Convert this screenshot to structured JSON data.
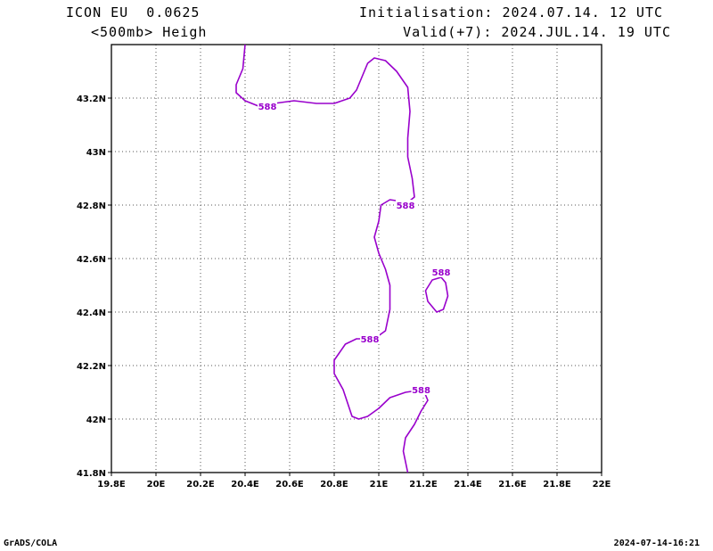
{
  "header": {
    "model": "ICON EU  0.0625",
    "field": "<500mb> Heigh",
    "init": "Initialisation: 2024.07.14. 12 UTC",
    "valid": "Valid(+7): 2024.JUL.14. 19 UTC"
  },
  "footer": {
    "software": "GrADS/COLA",
    "timestamp": "2024-07-14-16:21"
  },
  "chart_data": {
    "type": "contour",
    "xlim": [
      19.8,
      22.0
    ],
    "ylim": [
      41.8,
      43.4
    ],
    "x_ticks": [
      19.8,
      20.0,
      20.2,
      20.4,
      20.6,
      20.8,
      21.0,
      21.2,
      21.4,
      21.6,
      21.8,
      22.0
    ],
    "x_tick_labels": [
      "19.8E",
      "20E",
      "20.2E",
      "20.4E",
      "20.6E",
      "20.8E",
      "21E",
      "21.2E",
      "21.4E",
      "21.6E",
      "21.8E",
      "22E"
    ],
    "y_ticks": [
      41.8,
      42.0,
      42.2,
      42.4,
      42.6,
      42.8,
      43.0,
      43.2
    ],
    "y_tick_labels": [
      "41.8N",
      "42N",
      "42.2N",
      "42.4N",
      "42.6N",
      "42.8N",
      "43N",
      "43.2N"
    ],
    "grid": true,
    "contour_color": "#9900cc",
    "contours": [
      {
        "value": "588",
        "points": [
          [
            20.4,
            43.4
          ],
          [
            20.39,
            43.31
          ],
          [
            20.36,
            43.25
          ],
          [
            20.36,
            43.22
          ],
          [
            20.4,
            43.19
          ],
          [
            20.46,
            43.17
          ],
          [
            20.53,
            43.18
          ],
          [
            20.62,
            43.19
          ],
          [
            20.72,
            43.18
          ],
          [
            20.8,
            43.18
          ],
          [
            20.87,
            43.2
          ],
          [
            20.9,
            43.23
          ],
          [
            20.93,
            43.29
          ],
          [
            20.95,
            43.33
          ],
          [
            20.98,
            43.35
          ],
          [
            21.03,
            43.34
          ],
          [
            21.08,
            43.3
          ],
          [
            21.13,
            43.24
          ],
          [
            21.14,
            43.15
          ],
          [
            21.13,
            43.05
          ],
          [
            21.13,
            42.98
          ],
          [
            21.15,
            42.9
          ],
          [
            21.16,
            42.83
          ],
          [
            21.13,
            42.81
          ],
          [
            21.05,
            42.82
          ],
          [
            21.01,
            42.8
          ],
          [
            21.0,
            42.74
          ],
          [
            20.98,
            42.68
          ],
          [
            21.0,
            42.62
          ],
          [
            21.03,
            42.56
          ],
          [
            21.05,
            42.5
          ],
          [
            21.05,
            42.41
          ],
          [
            21.03,
            42.33
          ],
          [
            20.98,
            42.3
          ],
          [
            20.9,
            42.3
          ],
          [
            20.85,
            42.28
          ],
          [
            20.8,
            42.22
          ],
          [
            20.8,
            42.17
          ],
          [
            20.84,
            42.11
          ],
          [
            20.86,
            42.06
          ],
          [
            20.88,
            42.01
          ],
          [
            20.91,
            42.0
          ],
          [
            20.95,
            42.01
          ],
          [
            21.0,
            42.04
          ],
          [
            21.05,
            42.08
          ],
          [
            21.12,
            42.1
          ],
          [
            21.2,
            42.11
          ],
          [
            21.22,
            42.07
          ],
          [
            21.19,
            42.03
          ],
          [
            21.16,
            41.98
          ],
          [
            21.12,
            41.93
          ],
          [
            21.11,
            41.88
          ],
          [
            21.13,
            41.8
          ]
        ],
        "labels": [
          [
            20.5,
            43.17
          ],
          [
            21.12,
            42.8
          ],
          [
            20.96,
            42.3
          ],
          [
            21.19,
            42.11
          ]
        ]
      },
      {
        "value": "588",
        "closed": true,
        "points": [
          [
            21.28,
            42.53
          ],
          [
            21.3,
            42.51
          ],
          [
            21.31,
            42.46
          ],
          [
            21.29,
            42.41
          ],
          [
            21.26,
            42.4
          ],
          [
            21.22,
            42.44
          ],
          [
            21.21,
            42.48
          ],
          [
            21.24,
            42.52
          ],
          [
            21.28,
            42.53
          ]
        ],
        "labels": [
          [
            21.28,
            42.55
          ]
        ]
      }
    ]
  }
}
